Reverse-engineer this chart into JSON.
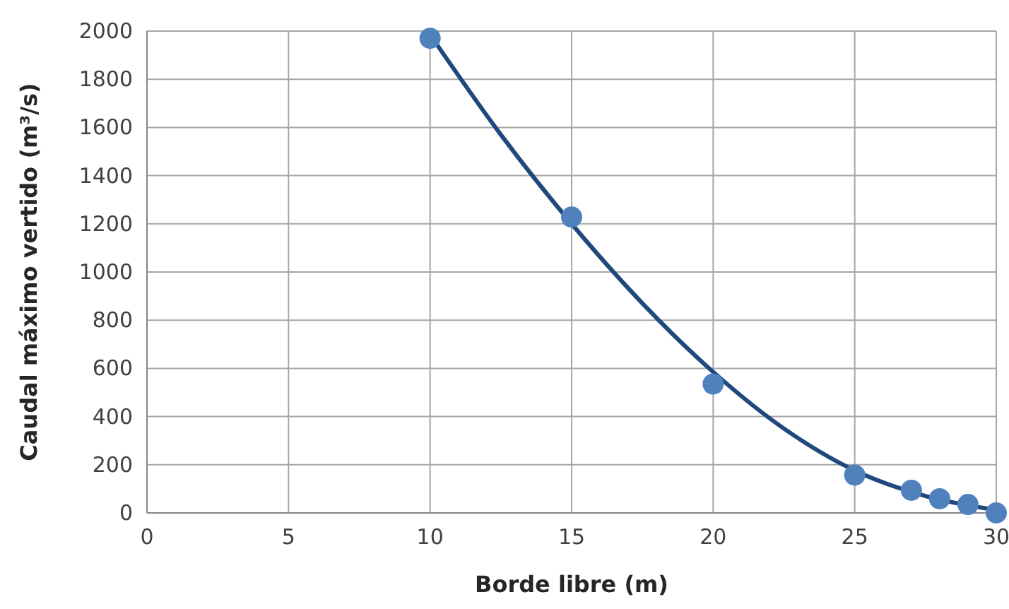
{
  "chart_data": {
    "type": "scatter",
    "xlabel": "Borde libre (m)",
    "ylabel": "Caudal máximo vertido (m³/s)",
    "x": [
      10,
      15,
      20,
      25,
      27,
      28,
      29,
      30
    ],
    "series": [
      {
        "color": "#4f81bd",
        "marker": "circle",
        "values": [
          1970,
          1228,
          535,
          157,
          94,
          59,
          35,
          0
        ]
      },
      {
        "type": "line",
        "color": "#1f497d",
        "x": [
          10,
          12.5,
          15,
          17.5,
          20,
          22.5,
          25,
          27.5,
          30
        ],
        "values": [
          1985,
          1570,
          1200,
          870,
          585,
          350,
          176,
          70,
          12
        ]
      }
    ],
    "xlim": [
      0,
      30
    ],
    "xticks": [
      0,
      5,
      10,
      15,
      20,
      25,
      30
    ],
    "ylim": [
      0,
      2000
    ],
    "yticks": [
      0,
      200,
      400,
      600,
      800,
      1000,
      1200,
      1400,
      1600,
      1800,
      2000
    ],
    "grid": true,
    "line_style": "solid"
  }
}
